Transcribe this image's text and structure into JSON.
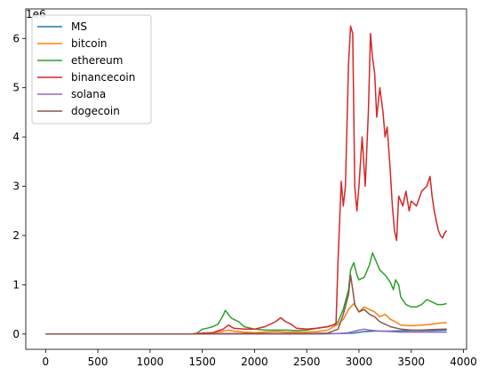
{
  "chart_data": {
    "type": "line",
    "offset_label": "1e6",
    "xlim": [
      -190,
      4030
    ],
    "ylim": [
      -0.31,
      6.6
    ],
    "x_ticks": [
      0,
      500,
      1000,
      1500,
      2000,
      2500,
      3000,
      3500,
      4000
    ],
    "x_tick_labels": [
      "0",
      "500",
      "1000",
      "1500",
      "2000",
      "2500",
      "3000",
      "3500",
      "4000"
    ],
    "y_ticks": [
      0,
      1,
      2,
      3,
      4,
      5,
      6
    ],
    "y_tick_labels": [
      "0",
      "1",
      "2",
      "3",
      "4",
      "5",
      "6"
    ],
    "legend_position": "upper-left",
    "series": [
      {
        "name": "MS",
        "color": "#1f77b4",
        "points": [
          [
            0,
            0
          ],
          [
            500,
            0
          ],
          [
            1000,
            0
          ],
          [
            1500,
            0
          ],
          [
            2000,
            0
          ],
          [
            2500,
            0
          ],
          [
            2800,
            0.01
          ],
          [
            2950,
            0.02
          ],
          [
            3050,
            0.05
          ],
          [
            3150,
            0.06
          ],
          [
            3300,
            0.06
          ],
          [
            3500,
            0.07
          ],
          [
            3700,
            0.07
          ],
          [
            3840,
            0.08
          ]
        ]
      },
      {
        "name": "bitcoin",
        "color": "#ff7f0e",
        "points": [
          [
            0,
            0
          ],
          [
            500,
            0
          ],
          [
            1000,
            0
          ],
          [
            1400,
            0
          ],
          [
            1500,
            0.01
          ],
          [
            1600,
            0.02
          ],
          [
            1700,
            0.06
          ],
          [
            1750,
            0.08
          ],
          [
            1800,
            0.06
          ],
          [
            1900,
            0.04
          ],
          [
            2000,
            0.03
          ],
          [
            2100,
            0.04
          ],
          [
            2200,
            0.05
          ],
          [
            2300,
            0.04
          ],
          [
            2400,
            0.04
          ],
          [
            2500,
            0.04
          ],
          [
            2600,
            0.05
          ],
          [
            2700,
            0.08
          ],
          [
            2800,
            0.2
          ],
          [
            2850,
            0.3
          ],
          [
            2900,
            0.5
          ],
          [
            2950,
            0.62
          ],
          [
            3000,
            0.45
          ],
          [
            3050,
            0.55
          ],
          [
            3100,
            0.5
          ],
          [
            3150,
            0.45
          ],
          [
            3200,
            0.35
          ],
          [
            3250,
            0.4
          ],
          [
            3300,
            0.3
          ],
          [
            3350,
            0.25
          ],
          [
            3400,
            0.18
          ],
          [
            3500,
            0.17
          ],
          [
            3600,
            0.18
          ],
          [
            3700,
            0.2
          ],
          [
            3800,
            0.23
          ],
          [
            3840,
            0.23
          ]
        ]
      },
      {
        "name": "ethereum",
        "color": "#2ca02c",
        "points": [
          [
            0,
            0
          ],
          [
            500,
            0
          ],
          [
            1000,
            0
          ],
          [
            1400,
            0
          ],
          [
            1450,
            0.02
          ],
          [
            1500,
            0.1
          ],
          [
            1550,
            0.12
          ],
          [
            1600,
            0.15
          ],
          [
            1650,
            0.2
          ],
          [
            1700,
            0.38
          ],
          [
            1720,
            0.48
          ],
          [
            1750,
            0.4
          ],
          [
            1780,
            0.32
          ],
          [
            1800,
            0.3
          ],
          [
            1850,
            0.25
          ],
          [
            1900,
            0.15
          ],
          [
            2000,
            0.1
          ],
          [
            2100,
            0.08
          ],
          [
            2200,
            0.08
          ],
          [
            2300,
            0.08
          ],
          [
            2400,
            0.07
          ],
          [
            2500,
            0.08
          ],
          [
            2600,
            0.12
          ],
          [
            2700,
            0.15
          ],
          [
            2750,
            0.18
          ],
          [
            2800,
            0.25
          ],
          [
            2850,
            0.5
          ],
          [
            2900,
            0.9
          ],
          [
            2920,
            1.3
          ],
          [
            2950,
            1.45
          ],
          [
            2980,
            1.2
          ],
          [
            3000,
            1.1
          ],
          [
            3050,
            1.15
          ],
          [
            3100,
            1.4
          ],
          [
            3130,
            1.65
          ],
          [
            3160,
            1.5
          ],
          [
            3200,
            1.3
          ],
          [
            3250,
            1.2
          ],
          [
            3300,
            1.05
          ],
          [
            3330,
            0.9
          ],
          [
            3350,
            1.1
          ],
          [
            3380,
            1.0
          ],
          [
            3400,
            0.75
          ],
          [
            3450,
            0.6
          ],
          [
            3500,
            0.55
          ],
          [
            3550,
            0.55
          ],
          [
            3600,
            0.6
          ],
          [
            3650,
            0.7
          ],
          [
            3700,
            0.65
          ],
          [
            3750,
            0.6
          ],
          [
            3800,
            0.6
          ],
          [
            3840,
            0.62
          ]
        ]
      },
      {
        "name": "binancecoin",
        "color": "#d62728",
        "points": [
          [
            0,
            0
          ],
          [
            500,
            0
          ],
          [
            1000,
            0
          ],
          [
            1400,
            0
          ],
          [
            1500,
            0.02
          ],
          [
            1600,
            0.03
          ],
          [
            1700,
            0.1
          ],
          [
            1750,
            0.18
          ],
          [
            1800,
            0.12
          ],
          [
            1900,
            0.1
          ],
          [
            2000,
            0.1
          ],
          [
            2100,
            0.15
          ],
          [
            2200,
            0.25
          ],
          [
            2250,
            0.33
          ],
          [
            2300,
            0.25
          ],
          [
            2350,
            0.2
          ],
          [
            2400,
            0.12
          ],
          [
            2500,
            0.1
          ],
          [
            2600,
            0.12
          ],
          [
            2700,
            0.15
          ],
          [
            2780,
            0.2
          ],
          [
            2800,
            1.5
          ],
          [
            2830,
            3.1
          ],
          [
            2850,
            2.6
          ],
          [
            2870,
            3.0
          ],
          [
            2900,
            5.5
          ],
          [
            2920,
            6.25
          ],
          [
            2940,
            6.1
          ],
          [
            2960,
            3.0
          ],
          [
            2980,
            2.5
          ],
          [
            3000,
            3.0
          ],
          [
            3030,
            4.0
          ],
          [
            3060,
            3.0
          ],
          [
            3090,
            4.5
          ],
          [
            3110,
            6.1
          ],
          [
            3130,
            5.6
          ],
          [
            3150,
            5.3
          ],
          [
            3170,
            4.4
          ],
          [
            3200,
            5.0
          ],
          [
            3230,
            4.5
          ],
          [
            3250,
            4.0
          ],
          [
            3270,
            4.2
          ],
          [
            3300,
            3.3
          ],
          [
            3320,
            2.6
          ],
          [
            3340,
            2.1
          ],
          [
            3360,
            1.9
          ],
          [
            3380,
            2.8
          ],
          [
            3420,
            2.6
          ],
          [
            3450,
            2.9
          ],
          [
            3480,
            2.5
          ],
          [
            3500,
            2.7
          ],
          [
            3550,
            2.6
          ],
          [
            3600,
            2.9
          ],
          [
            3650,
            3.0
          ],
          [
            3680,
            3.2
          ],
          [
            3700,
            2.8
          ],
          [
            3720,
            2.5
          ],
          [
            3740,
            2.3
          ],
          [
            3760,
            2.1
          ],
          [
            3780,
            2.0
          ],
          [
            3800,
            1.95
          ],
          [
            3820,
            2.05
          ],
          [
            3840,
            2.1
          ]
        ]
      },
      {
        "name": "solana",
        "color": "#9467bd",
        "points": [
          [
            0,
            0
          ],
          [
            500,
            0
          ],
          [
            1000,
            0
          ],
          [
            1500,
            0
          ],
          [
            2000,
            0
          ],
          [
            2500,
            0
          ],
          [
            2800,
            0.01
          ],
          [
            2900,
            0.03
          ],
          [
            3000,
            0.08
          ],
          [
            3050,
            0.1
          ],
          [
            3100,
            0.08
          ],
          [
            3200,
            0.06
          ],
          [
            3300,
            0.05
          ],
          [
            3400,
            0.04
          ],
          [
            3500,
            0.04
          ],
          [
            3600,
            0.04
          ],
          [
            3700,
            0.04
          ],
          [
            3840,
            0.04
          ]
        ]
      },
      {
        "name": "dogecoin",
        "color": "#8c564b",
        "points": [
          [
            0,
            0
          ],
          [
            500,
            0
          ],
          [
            1000,
            0
          ],
          [
            1500,
            0
          ],
          [
            1700,
            0.01
          ],
          [
            2000,
            0.01
          ],
          [
            2500,
            0.01
          ],
          [
            2700,
            0.02
          ],
          [
            2800,
            0.1
          ],
          [
            2850,
            0.4
          ],
          [
            2900,
            0.8
          ],
          [
            2920,
            1.2
          ],
          [
            2940,
            0.9
          ],
          [
            2960,
            0.6
          ],
          [
            3000,
            0.45
          ],
          [
            3050,
            0.5
          ],
          [
            3100,
            0.4
          ],
          [
            3150,
            0.35
          ],
          [
            3200,
            0.25
          ],
          [
            3250,
            0.2
          ],
          [
            3300,
            0.15
          ],
          [
            3400,
            0.1
          ],
          [
            3500,
            0.08
          ],
          [
            3600,
            0.08
          ],
          [
            3700,
            0.09
          ],
          [
            3840,
            0.1
          ]
        ]
      }
    ]
  }
}
